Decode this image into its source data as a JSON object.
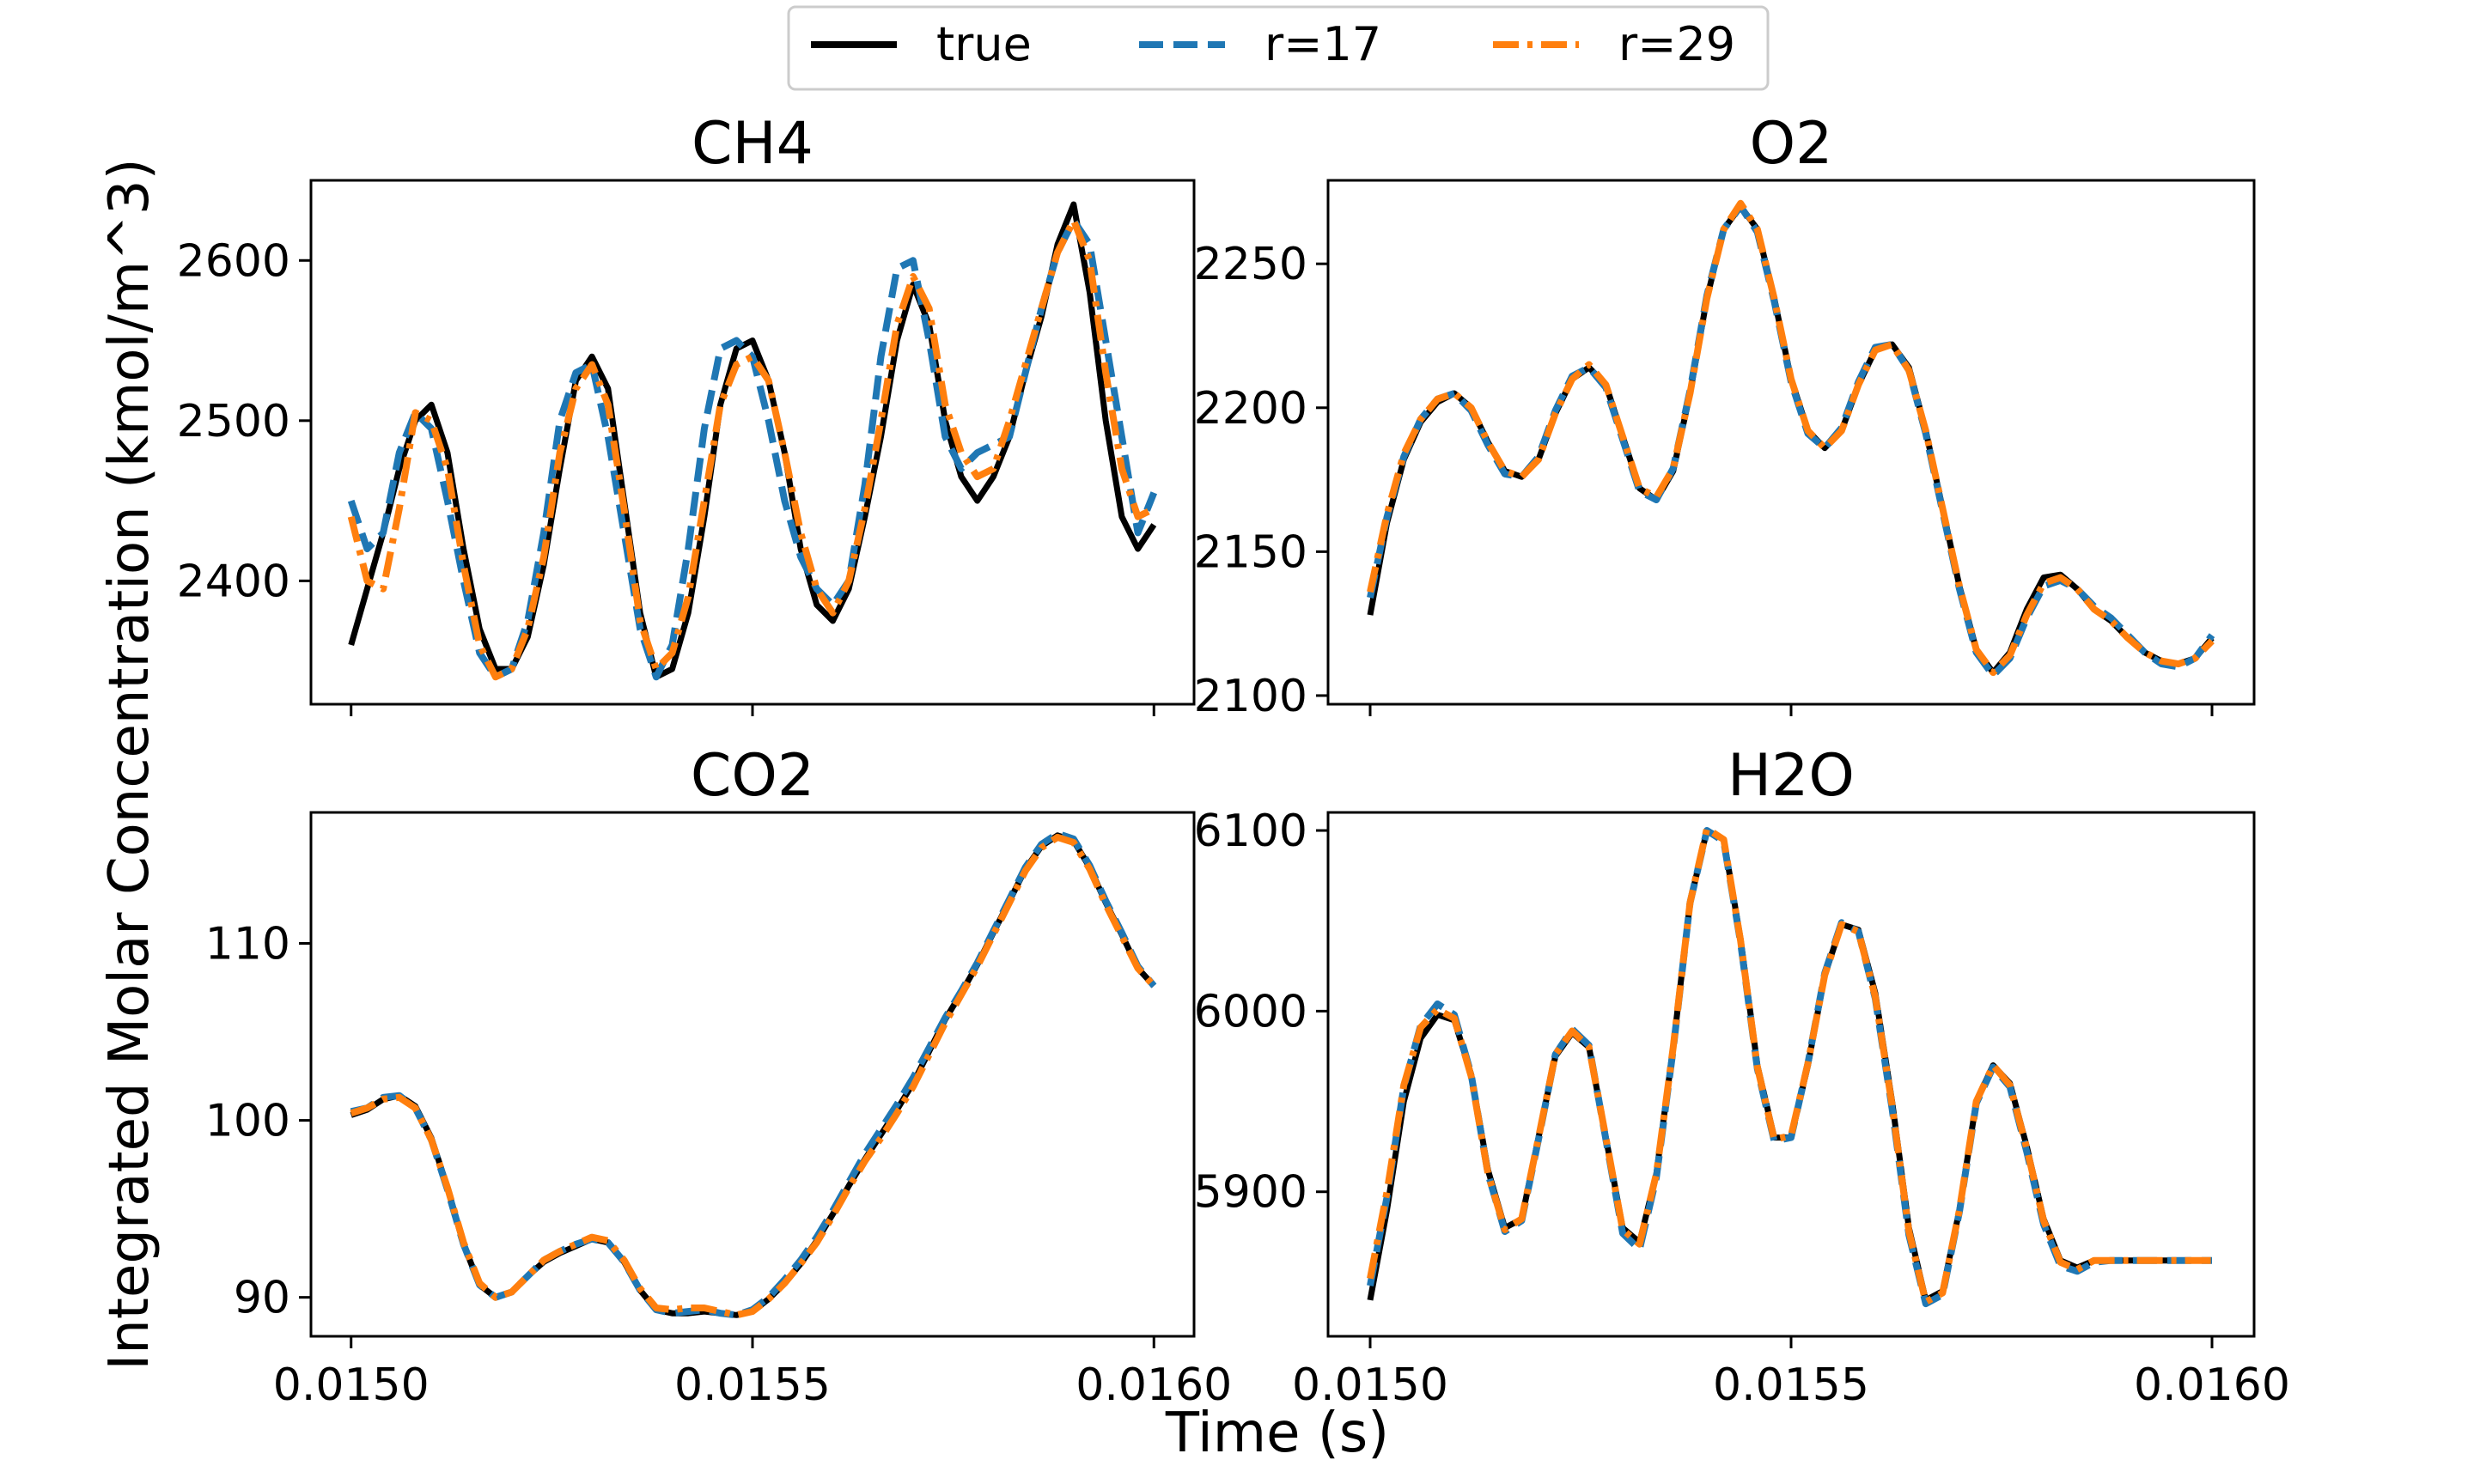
{
  "figure": {
    "xlabel": "Time (s)",
    "ylabel": "Integrated Molar Concentration (kmol/m^3)"
  },
  "legend": {
    "placement": "top-center, outside panels",
    "entries": [
      {
        "label": "true",
        "color": "#000000",
        "style": "solid"
      },
      {
        "label": "r=17",
        "color": "#1f77b4",
        "style": "dashed"
      },
      {
        "label": "r=29",
        "color": "#ff7f0e",
        "style": "dashdot"
      }
    ]
  },
  "chart_data": [
    {
      "type": "line",
      "title": "CH4",
      "xlim": [
        0.015,
        0.016
      ],
      "ylim": [
        2323,
        2650
      ],
      "xticks": [
        0.015,
        0.0155,
        0.016
      ],
      "xtick_labels": [
        "",
        "",
        ""
      ],
      "yticks": [
        2400,
        2500,
        2600
      ],
      "ytick_labels": [
        "2400",
        "2500",
        "2600"
      ],
      "grid": false,
      "x": [
        0.015,
        0.01502,
        0.01504,
        0.01506,
        0.01508,
        0.0151,
        0.01512,
        0.01514,
        0.01516,
        0.01518,
        0.0152,
        0.01522,
        0.01524,
        0.01526,
        0.01528,
        0.0153,
        0.01532,
        0.01534,
        0.01536,
        0.01538,
        0.0154,
        0.01542,
        0.01544,
        0.01546,
        0.01548,
        0.0155,
        0.01552,
        0.01554,
        0.01556,
        0.01558,
        0.0156,
        0.01562,
        0.01564,
        0.01566,
        0.01568,
        0.0157,
        0.01572,
        0.01574,
        0.01576,
        0.01578,
        0.0158,
        0.01582,
        0.01584,
        0.01586,
        0.01588,
        0.0159,
        0.01592,
        0.01594,
        0.01596,
        0.01598,
        0.016
      ],
      "series": [
        {
          "name": "true",
          "color": "#000000",
          "dash": "solid",
          "values": [
            2360,
            2395,
            2430,
            2470,
            2500,
            2510,
            2480,
            2420,
            2370,
            2345,
            2345,
            2365,
            2410,
            2470,
            2525,
            2540,
            2520,
            2450,
            2380,
            2340,
            2345,
            2380,
            2440,
            2510,
            2545,
            2550,
            2525,
            2480,
            2420,
            2385,
            2375,
            2395,
            2440,
            2490,
            2550,
            2585,
            2560,
            2500,
            2465,
            2450,
            2465,
            2490,
            2530,
            2565,
            2610,
            2635,
            2580,
            2500,
            2440,
            2420,
            2435
          ]
        },
        {
          "name": "r=17",
          "color": "#1f77b4",
          "dash": "dashed",
          "values": [
            2450,
            2420,
            2430,
            2480,
            2505,
            2495,
            2450,
            2400,
            2355,
            2340,
            2345,
            2375,
            2430,
            2500,
            2530,
            2535,
            2490,
            2430,
            2370,
            2340,
            2360,
            2420,
            2495,
            2545,
            2550,
            2540,
            2500,
            2450,
            2415,
            2395,
            2385,
            2400,
            2460,
            2540,
            2595,
            2600,
            2550,
            2490,
            2470,
            2480,
            2485,
            2490,
            2530,
            2570,
            2605,
            2625,
            2610,
            2550,
            2490,
            2430,
            2455
          ]
        },
        {
          "name": "r=29",
          "color": "#ff7f0e",
          "dash": "dashdot",
          "values": [
            2440,
            2400,
            2395,
            2445,
            2505,
            2500,
            2470,
            2410,
            2360,
            2340,
            2345,
            2370,
            2415,
            2480,
            2520,
            2535,
            2510,
            2445,
            2375,
            2345,
            2355,
            2390,
            2450,
            2510,
            2535,
            2540,
            2525,
            2480,
            2430,
            2395,
            2380,
            2400,
            2445,
            2500,
            2560,
            2590,
            2570,
            2510,
            2480,
            2465,
            2470,
            2500,
            2535,
            2570,
            2605,
            2625,
            2600,
            2530,
            2470,
            2440,
            2445
          ]
        }
      ]
    },
    {
      "type": "line",
      "title": "O2",
      "xlim": [
        0.015,
        0.016
      ],
      "ylim": [
        2097,
        2279
      ],
      "xticks": [
        0.015,
        0.0155,
        0.016
      ],
      "xtick_labels": [
        "",
        "",
        ""
      ],
      "yticks": [
        2100,
        2150,
        2200,
        2250
      ],
      "ytick_labels": [
        "2100",
        "2150",
        "2200",
        "2250"
      ],
      "grid": false,
      "x": [
        0.015,
        0.01502,
        0.01504,
        0.01506,
        0.01508,
        0.0151,
        0.01512,
        0.01514,
        0.01516,
        0.01518,
        0.0152,
        0.01522,
        0.01524,
        0.01526,
        0.01528,
        0.0153,
        0.01532,
        0.01534,
        0.01536,
        0.01538,
        0.0154,
        0.01542,
        0.01544,
        0.01546,
        0.01548,
        0.0155,
        0.01552,
        0.01554,
        0.01556,
        0.01558,
        0.0156,
        0.01562,
        0.01564,
        0.01566,
        0.01568,
        0.0157,
        0.01572,
        0.01574,
        0.01576,
        0.01578,
        0.0158,
        0.01582,
        0.01584,
        0.01586,
        0.01588,
        0.0159,
        0.01592,
        0.01594,
        0.01596,
        0.01598,
        0.016
      ],
      "series": [
        {
          "name": "true",
          "color": "#000000",
          "dash": "solid",
          "values": [
            2128,
            2160,
            2182,
            2195,
            2202,
            2205,
            2200,
            2188,
            2178,
            2176,
            2182,
            2198,
            2210,
            2214,
            2208,
            2190,
            2172,
            2168,
            2178,
            2205,
            2238,
            2262,
            2270,
            2262,
            2238,
            2210,
            2192,
            2186,
            2192,
            2208,
            2220,
            2222,
            2214,
            2192,
            2165,
            2138,
            2116,
            2108,
            2115,
            2130,
            2141,
            2142,
            2137,
            2130,
            2126,
            2120,
            2115,
            2112,
            2111,
            2113,
            2120
          ]
        },
        {
          "name": "r=17",
          "color": "#1f77b4",
          "dash": "dashed",
          "values": [
            2134,
            2162,
            2183,
            2196,
            2203,
            2205,
            2199,
            2187,
            2177,
            2176,
            2183,
            2199,
            2211,
            2214,
            2207,
            2189,
            2171,
            2168,
            2179,
            2206,
            2239,
            2262,
            2270,
            2261,
            2237,
            2209,
            2191,
            2186,
            2193,
            2209,
            2221,
            2222,
            2213,
            2191,
            2164,
            2137,
            2115,
            2107,
            2113,
            2127,
            2138,
            2140,
            2137,
            2131,
            2127,
            2121,
            2115,
            2111,
            2110,
            2113,
            2121
          ]
        },
        {
          "name": "r=29",
          "color": "#ff7f0e",
          "dash": "dashdot",
          "values": [
            2136,
            2163,
            2184,
            2196,
            2203,
            2205,
            2200,
            2188,
            2178,
            2176,
            2182,
            2198,
            2210,
            2215,
            2208,
            2190,
            2172,
            2169,
            2179,
            2205,
            2238,
            2262,
            2271,
            2262,
            2238,
            2210,
            2192,
            2186,
            2192,
            2208,
            2220,
            2222,
            2213,
            2192,
            2165,
            2138,
            2116,
            2108,
            2114,
            2128,
            2139,
            2141,
            2137,
            2130,
            2126,
            2120,
            2115,
            2112,
            2111,
            2113,
            2119
          ]
        }
      ]
    },
    {
      "type": "line",
      "title": "CO2",
      "xlim": [
        0.015,
        0.016
      ],
      "ylim": [
        87.8,
        117.4
      ],
      "xticks": [
        0.015,
        0.0155,
        0.016
      ],
      "xtick_labels": [
        "0.0150",
        "0.0155",
        "0.0160"
      ],
      "yticks": [
        90,
        100,
        110
      ],
      "ytick_labels": [
        "90",
        "100",
        "110"
      ],
      "grid": false,
      "x": [
        0.015,
        0.01502,
        0.01504,
        0.01506,
        0.01508,
        0.0151,
        0.01512,
        0.01514,
        0.01516,
        0.01518,
        0.0152,
        0.01522,
        0.01524,
        0.01526,
        0.01528,
        0.0153,
        0.01532,
        0.01534,
        0.01536,
        0.01538,
        0.0154,
        0.01542,
        0.01544,
        0.01546,
        0.01548,
        0.0155,
        0.01552,
        0.01554,
        0.01556,
        0.01558,
        0.0156,
        0.01562,
        0.01564,
        0.01566,
        0.01568,
        0.0157,
        0.01572,
        0.01574,
        0.01576,
        0.01578,
        0.0158,
        0.01582,
        0.01584,
        0.01586,
        0.01588,
        0.0159,
        0.01592,
        0.01594,
        0.01596,
        0.01598,
        0.016
      ],
      "series": [
        {
          "name": "true",
          "color": "#000000",
          "dash": "solid",
          "values": [
            100.3,
            100.6,
            101.2,
            101.4,
            100.8,
            99.0,
            96.2,
            93.0,
            90.7,
            90.0,
            90.3,
            91.2,
            92.0,
            92.5,
            92.9,
            93.3,
            93.1,
            92.0,
            90.4,
            89.3,
            89.1,
            89.1,
            89.2,
            89.1,
            89.0,
            89.2,
            89.9,
            90.8,
            91.9,
            93.2,
            94.7,
            96.3,
            97.8,
            99.2,
            100.6,
            102.1,
            103.9,
            105.7,
            107.2,
            108.8,
            110.6,
            112.4,
            114.2,
            115.5,
            116.1,
            115.8,
            114.3,
            112.3,
            110.5,
            108.6,
            107.6
          ]
        },
        {
          "name": "r=17",
          "color": "#1f77b4",
          "dash": "dashed",
          "values": [
            100.5,
            100.7,
            101.3,
            101.4,
            100.7,
            98.9,
            96.1,
            93.0,
            90.7,
            90.0,
            90.3,
            91.2,
            92.1,
            92.6,
            93.0,
            93.3,
            93.1,
            92.0,
            90.4,
            89.3,
            89.1,
            89.2,
            89.3,
            89.1,
            89.0,
            89.3,
            90.0,
            91.0,
            92.1,
            93.4,
            94.9,
            96.5,
            98.1,
            99.5,
            100.9,
            102.4,
            104.1,
            105.8,
            107.3,
            108.9,
            110.7,
            112.5,
            114.3,
            115.6,
            116.2,
            115.9,
            114.4,
            112.4,
            110.6,
            108.7,
            107.6
          ]
        },
        {
          "name": "r=29",
          "color": "#ff7f0e",
          "dash": "dashdot",
          "values": [
            100.4,
            100.7,
            101.2,
            101.3,
            100.7,
            98.9,
            96.2,
            93.1,
            90.8,
            90.0,
            90.3,
            91.2,
            92.1,
            92.6,
            93.0,
            93.4,
            93.2,
            92.1,
            90.5,
            89.4,
            89.3,
            89.4,
            89.4,
            89.2,
            89.0,
            89.2,
            89.9,
            90.8,
            91.9,
            93.1,
            94.6,
            96.2,
            97.7,
            99.0,
            100.4,
            101.9,
            103.7,
            105.5,
            107.1,
            108.7,
            110.5,
            112.3,
            114.1,
            115.4,
            116.0,
            115.7,
            114.2,
            112.2,
            110.4,
            108.6,
            107.6
          ]
        }
      ]
    },
    {
      "type": "line",
      "title": "H2O",
      "xlim": [
        0.015,
        0.016
      ],
      "ylim": [
        5820,
        6110
      ],
      "xticks": [
        0.015,
        0.0155,
        0.016
      ],
      "xtick_labels": [
        "0.0150",
        "0.0155",
        "0.0160"
      ],
      "yticks": [
        5900,
        6000,
        6100
      ],
      "ytick_labels": [
        "5900",
        "6000",
        "6100"
      ],
      "grid": false,
      "x": [
        0.015,
        0.01502,
        0.01504,
        0.01506,
        0.01508,
        0.0151,
        0.01512,
        0.01514,
        0.01516,
        0.01518,
        0.0152,
        0.01522,
        0.01524,
        0.01526,
        0.01528,
        0.0153,
        0.01532,
        0.01534,
        0.01536,
        0.01538,
        0.0154,
        0.01542,
        0.01544,
        0.01546,
        0.01548,
        0.0155,
        0.01552,
        0.01554,
        0.01556,
        0.01558,
        0.0156,
        0.01562,
        0.01564,
        0.01566,
        0.01568,
        0.0157,
        0.01572,
        0.01574,
        0.01576,
        0.01578,
        0.0158,
        0.01582,
        0.01584,
        0.01586,
        0.01588,
        0.0159,
        0.01592,
        0.01594,
        0.01596,
        0.01598,
        0.016
      ],
      "series": [
        {
          "name": "true",
          "color": "#000000",
          "dash": "solid",
          "values": [
            5840,
            5890,
            5950,
            5985,
            5998,
            5995,
            5965,
            5912,
            5880,
            5885,
            5930,
            5975,
            5988,
            5980,
            5930,
            5880,
            5872,
            5910,
            5980,
            6060,
            6100,
            6095,
            6040,
            5970,
            5930,
            5930,
            5970,
            6020,
            6048,
            6045,
            6010,
            5950,
            5880,
            5840,
            5845,
            5890,
            5950,
            5970,
            5960,
            5925,
            5885,
            5862,
            5858,
            5862,
            5862,
            5862,
            5862,
            5862,
            5862,
            5862,
            5862
          ]
        },
        {
          "name": "r=17",
          "color": "#1f77b4",
          "dash": "dashed",
          "values": [
            5848,
            5897,
            5958,
            5992,
            6004,
            5998,
            5965,
            5910,
            5878,
            5884,
            5929,
            5976,
            5990,
            5981,
            5929,
            5877,
            5868,
            5908,
            5979,
            6060,
            6100,
            6094,
            6038,
            5968,
            5928,
            5930,
            5971,
            6021,
            6049,
            6044,
            6007,
            5946,
            5876,
            5838,
            5843,
            5889,
            5949,
            5969,
            5958,
            5922,
            5882,
            5859,
            5856,
            5861,
            5862,
            5862,
            5862,
            5862,
            5862,
            5862,
            5862
          ]
        },
        {
          "name": "r=29",
          "color": "#ff7f0e",
          "dash": "dashdot",
          "values": [
            5852,
            5900,
            5959,
            5991,
            6001,
            5996,
            5964,
            5910,
            5879,
            5885,
            5930,
            5976,
            5989,
            5980,
            5930,
            5879,
            5871,
            5910,
            5980,
            6060,
            6101,
            6095,
            6039,
            5969,
            5929,
            5931,
            5971,
            6020,
            6048,
            6044,
            6008,
            5948,
            5878,
            5839,
            5844,
            5890,
            5950,
            5970,
            5959,
            5924,
            5884,
            5861,
            5857,
            5862,
            5862,
            5862,
            5862,
            5862,
            5862,
            5862,
            5862
          ]
        }
      ]
    }
  ]
}
